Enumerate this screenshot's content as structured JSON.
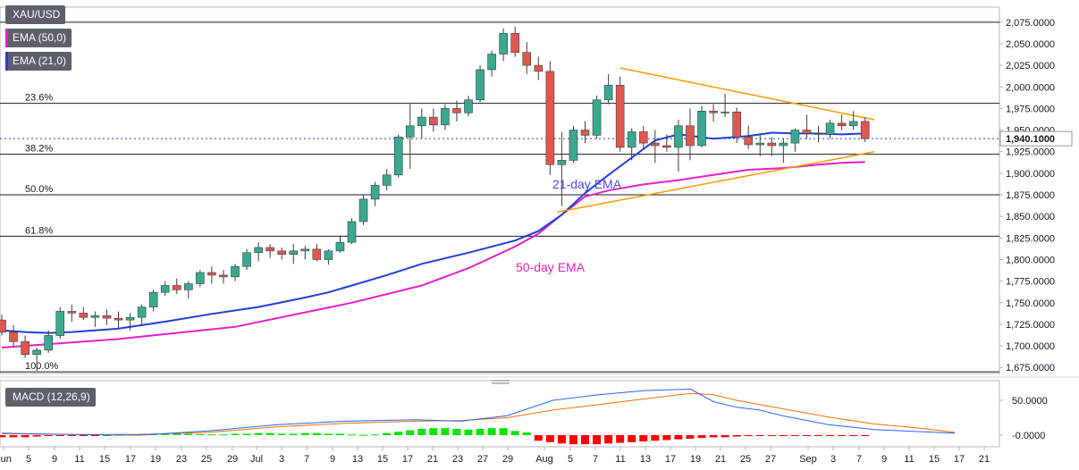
{
  "main_chart": {
    "symbol": "XAU/USD",
    "indicators": [
      "EMA (50,0)",
      "EMA (21,0)"
    ],
    "indicator_colors": [
      "#e51fc8",
      "#1f3fd6"
    ],
    "last_price": "1,940.1000",
    "price_ticks": [
      "2,075.0000",
      "2,050.0000",
      "2,025.0000",
      "2,000.0000",
      "1,975.0000",
      "1,950.0000",
      "1,925.0000",
      "1,900.0000",
      "1,875.0000",
      "1,850.0000",
      "1,825.0000",
      "1,800.0000",
      "1,775.0000",
      "1,750.0000",
      "1,725.0000",
      "1,700.0000",
      "1,675.0000"
    ],
    "date_ticks": [
      "Jun",
      "5",
      "9",
      "11",
      "15",
      "17",
      "19",
      "23",
      "25",
      "29",
      "Jul",
      "3",
      "7",
      "9",
      "13",
      "15",
      "17",
      "21",
      "23",
      "27",
      "29",
      "Aug",
      "5",
      "7",
      "11",
      "13",
      "17",
      "19",
      "21",
      "25",
      "27",
      "Sep",
      "3",
      "7",
      "9",
      "11",
      "15",
      "17",
      "21"
    ],
    "fib_labels": [
      "23.6%",
      "38.2%",
      "50.0%",
      "61.8%",
      "100.0%"
    ],
    "annotations": [
      "21-day EMA",
      "50-day EMA"
    ]
  },
  "macd_panel": {
    "label": "MACD (12,26,9)",
    "ticks": [
      "50.0000",
      "-0.0000"
    ]
  },
  "chart_data": {
    "type": "candlestick",
    "ylim": [
      1668,
      2080
    ],
    "levels": {
      "fib_0": 2075,
      "fib_23_6": 1981,
      "fib_38_2": 1922,
      "fib_50_0": 1875,
      "fib_61_8": 1827,
      "fib_100": 1670,
      "last": 1940.1
    },
    "candles": [
      {
        "o": 1730,
        "h": 1736,
        "l": 1712,
        "c": 1716
      },
      {
        "o": 1716,
        "h": 1724,
        "l": 1700,
        "c": 1705
      },
      {
        "o": 1705,
        "h": 1712,
        "l": 1686,
        "c": 1690
      },
      {
        "o": 1690,
        "h": 1698,
        "l": 1671,
        "c": 1695
      },
      {
        "o": 1695,
        "h": 1718,
        "l": 1692,
        "c": 1712
      },
      {
        "o": 1712,
        "h": 1745,
        "l": 1708,
        "c": 1740
      },
      {
        "o": 1740,
        "h": 1748,
        "l": 1728,
        "c": 1738
      },
      {
        "o": 1738,
        "h": 1745,
        "l": 1730,
        "c": 1733
      },
      {
        "o": 1733,
        "h": 1740,
        "l": 1722,
        "c": 1735
      },
      {
        "o": 1735,
        "h": 1742,
        "l": 1724,
        "c": 1732
      },
      {
        "o": 1732,
        "h": 1740,
        "l": 1720,
        "c": 1730
      },
      {
        "o": 1730,
        "h": 1738,
        "l": 1718,
        "c": 1733
      },
      {
        "o": 1733,
        "h": 1748,
        "l": 1725,
        "c": 1745
      },
      {
        "o": 1745,
        "h": 1765,
        "l": 1740,
        "c": 1762
      },
      {
        "o": 1762,
        "h": 1775,
        "l": 1758,
        "c": 1770
      },
      {
        "o": 1770,
        "h": 1778,
        "l": 1760,
        "c": 1765
      },
      {
        "o": 1765,
        "h": 1775,
        "l": 1755,
        "c": 1772
      },
      {
        "o": 1772,
        "h": 1788,
        "l": 1768,
        "c": 1785
      },
      {
        "o": 1785,
        "h": 1792,
        "l": 1772,
        "c": 1782
      },
      {
        "o": 1782,
        "h": 1788,
        "l": 1772,
        "c": 1780
      },
      {
        "o": 1780,
        "h": 1795,
        "l": 1775,
        "c": 1792
      },
      {
        "o": 1792,
        "h": 1812,
        "l": 1788,
        "c": 1808
      },
      {
        "o": 1808,
        "h": 1820,
        "l": 1798,
        "c": 1814
      },
      {
        "o": 1814,
        "h": 1818,
        "l": 1802,
        "c": 1810
      },
      {
        "o": 1810,
        "h": 1814,
        "l": 1800,
        "c": 1806
      },
      {
        "o": 1806,
        "h": 1818,
        "l": 1795,
        "c": 1810
      },
      {
        "o": 1810,
        "h": 1816,
        "l": 1800,
        "c": 1812
      },
      {
        "o": 1812,
        "h": 1818,
        "l": 1798,
        "c": 1800
      },
      {
        "o": 1800,
        "h": 1812,
        "l": 1794,
        "c": 1810
      },
      {
        "o": 1810,
        "h": 1828,
        "l": 1808,
        "c": 1820
      },
      {
        "o": 1820,
        "h": 1848,
        "l": 1818,
        "c": 1844
      },
      {
        "o": 1844,
        "h": 1875,
        "l": 1840,
        "c": 1870
      },
      {
        "o": 1870,
        "h": 1890,
        "l": 1862,
        "c": 1886
      },
      {
        "o": 1886,
        "h": 1905,
        "l": 1880,
        "c": 1898
      },
      {
        "o": 1898,
        "h": 1945,
        "l": 1895,
        "c": 1942
      },
      {
        "o": 1942,
        "h": 1980,
        "l": 1905,
        "c": 1955
      },
      {
        "o": 1955,
        "h": 1975,
        "l": 1940,
        "c": 1965
      },
      {
        "o": 1965,
        "h": 1975,
        "l": 1948,
        "c": 1956
      },
      {
        "o": 1956,
        "h": 1980,
        "l": 1950,
        "c": 1975
      },
      {
        "o": 1975,
        "h": 1984,
        "l": 1960,
        "c": 1970
      },
      {
        "o": 1970,
        "h": 1990,
        "l": 1966,
        "c": 1985
      },
      {
        "o": 1985,
        "h": 2025,
        "l": 1982,
        "c": 2020
      },
      {
        "o": 2020,
        "h": 2042,
        "l": 2012,
        "c": 2038
      },
      {
        "o": 2038,
        "h": 2068,
        "l": 2030,
        "c": 2062
      },
      {
        "o": 2062,
        "h": 2070,
        "l": 2035,
        "c": 2040
      },
      {
        "o": 2040,
        "h": 2052,
        "l": 2015,
        "c": 2025
      },
      {
        "o": 2025,
        "h": 2035,
        "l": 2008,
        "c": 2018
      },
      {
        "o": 2018,
        "h": 2030,
        "l": 1898,
        "c": 1910
      },
      {
        "o": 1910,
        "h": 1948,
        "l": 1862,
        "c": 1915
      },
      {
        "o": 1915,
        "h": 1955,
        "l": 1912,
        "c": 1950
      },
      {
        "o": 1950,
        "h": 1960,
        "l": 1935,
        "c": 1944
      },
      {
        "o": 1944,
        "h": 1990,
        "l": 1940,
        "c": 1985
      },
      {
        "o": 1985,
        "h": 2015,
        "l": 1980,
        "c": 2002
      },
      {
        "o": 2002,
        "h": 2012,
        "l": 1925,
        "c": 1930
      },
      {
        "o": 1930,
        "h": 1952,
        "l": 1915,
        "c": 1948
      },
      {
        "o": 1948,
        "h": 1955,
        "l": 1928,
        "c": 1935
      },
      {
        "o": 1935,
        "h": 1950,
        "l": 1912,
        "c": 1932
      },
      {
        "o": 1932,
        "h": 1945,
        "l": 1925,
        "c": 1930
      },
      {
        "o": 1930,
        "h": 1962,
        "l": 1902,
        "c": 1955
      },
      {
        "o": 1955,
        "h": 1975,
        "l": 1915,
        "c": 1932
      },
      {
        "o": 1932,
        "h": 1978,
        "l": 1930,
        "c": 1972
      },
      {
        "o": 1972,
        "h": 1980,
        "l": 1960,
        "c": 1970
      },
      {
        "o": 1970,
        "h": 1992,
        "l": 1965,
        "c": 1971
      },
      {
        "o": 1971,
        "h": 1976,
        "l": 1935,
        "c": 1942
      },
      {
        "o": 1942,
        "h": 1955,
        "l": 1928,
        "c": 1933
      },
      {
        "o": 1933,
        "h": 1945,
        "l": 1920,
        "c": 1935
      },
      {
        "o": 1935,
        "h": 1942,
        "l": 1920,
        "c": 1932
      },
      {
        "o": 1932,
        "h": 1940,
        "l": 1912,
        "c": 1935
      },
      {
        "o": 1935,
        "h": 1952,
        "l": 1925,
        "c": 1950
      },
      {
        "o": 1950,
        "h": 1968,
        "l": 1940,
        "c": 1946
      },
      {
        "o": 1946,
        "h": 1955,
        "l": 1936,
        "c": 1945
      },
      {
        "o": 1945,
        "h": 1962,
        "l": 1940,
        "c": 1958
      },
      {
        "o": 1958,
        "h": 1968,
        "l": 1950,
        "c": 1955
      },
      {
        "o": 1955,
        "h": 1972,
        "l": 1950,
        "c": 1960
      },
      {
        "o": 1960,
        "h": 1965,
        "l": 1936,
        "c": 1940.1
      }
    ],
    "ema21": [
      [
        0,
        1718
      ],
      [
        2,
        1716
      ],
      [
        4,
        1715
      ],
      [
        6,
        1716
      ],
      [
        10,
        1720
      ],
      [
        14,
        1728
      ],
      [
        18,
        1737
      ],
      [
        22,
        1745
      ],
      [
        26,
        1756
      ],
      [
        28,
        1762
      ],
      [
        30,
        1770
      ],
      [
        33,
        1782
      ],
      [
        36,
        1795
      ],
      [
        40,
        1808
      ],
      [
        44,
        1822
      ],
      [
        46,
        1833
      ],
      [
        48,
        1852
      ],
      [
        50,
        1877
      ],
      [
        52,
        1898
      ],
      [
        54,
        1918
      ],
      [
        56,
        1938
      ],
      [
        58,
        1945
      ],
      [
        61,
        1940
      ],
      [
        64,
        1943
      ],
      [
        66,
        1947
      ],
      [
        68,
        1946
      ],
      [
        70,
        1946
      ],
      [
        72,
        1945
      ],
      [
        74,
        1946
      ]
    ],
    "ema50": [
      [
        0,
        1698
      ],
      [
        10,
        1708
      ],
      [
        20,
        1722
      ],
      [
        30,
        1750
      ],
      [
        36,
        1770
      ],
      [
        40,
        1790
      ],
      [
        44,
        1815
      ],
      [
        46,
        1830
      ],
      [
        48,
        1852
      ],
      [
        50,
        1873
      ],
      [
        52,
        1880
      ],
      [
        55,
        1887
      ],
      [
        58,
        1892
      ],
      [
        61,
        1898
      ],
      [
        64,
        1904
      ],
      [
        67,
        1906
      ],
      [
        70,
        1910
      ],
      [
        72,
        1912
      ],
      [
        74,
        1913
      ]
    ],
    "trendlines": [
      {
        "x1": 53,
        "y1": 2022,
        "x2": 74.8,
        "y2": 1962
      },
      {
        "x1": 47.6,
        "y1": 1855,
        "x2": 74.8,
        "y2": 1925
      }
    ],
    "macd": {
      "ylim": [
        -15,
        68
      ],
      "macd_line": [
        [
          0,
          3
        ],
        [
          6,
          1
        ],
        [
          12,
          0
        ],
        [
          18,
          6
        ],
        [
          24,
          15
        ],
        [
          30,
          20
        ],
        [
          36,
          22
        ],
        [
          40,
          20
        ],
        [
          44,
          28
        ],
        [
          48,
          50
        ],
        [
          52,
          58
        ],
        [
          56,
          64
        ],
        [
          60,
          66
        ],
        [
          62,
          48
        ],
        [
          64,
          40
        ],
        [
          66,
          36
        ],
        [
          68,
          28
        ],
        [
          72,
          15
        ],
        [
          76,
          8
        ],
        [
          80,
          5
        ],
        [
          83,
          3
        ]
      ],
      "signal_line": [
        [
          0,
          2
        ],
        [
          6,
          1
        ],
        [
          12,
          1
        ],
        [
          18,
          4
        ],
        [
          24,
          12
        ],
        [
          30,
          17
        ],
        [
          36,
          20
        ],
        [
          40,
          21
        ],
        [
          44,
          25
        ],
        [
          48,
          36
        ],
        [
          52,
          44
        ],
        [
          56,
          52
        ],
        [
          60,
          60
        ],
        [
          62,
          58
        ],
        [
          64,
          50
        ],
        [
          66,
          44
        ],
        [
          68,
          38
        ],
        [
          72,
          26
        ],
        [
          76,
          16
        ],
        [
          80,
          10
        ],
        [
          83,
          4
        ]
      ],
      "histogram": [
        -3,
        -3,
        -3,
        -2,
        -1,
        -1,
        -1,
        -0.5,
        -0.5,
        0,
        0.5,
        1,
        2,
        2,
        2,
        2,
        2,
        1.5,
        1,
        1,
        2,
        2,
        3,
        3,
        2,
        2,
        3,
        3,
        2,
        2,
        1,
        0.5,
        1,
        3,
        5,
        7,
        9,
        10,
        10,
        9,
        8,
        9,
        10,
        10,
        6,
        4,
        -8,
        -10,
        -12,
        -13,
        -13,
        -13,
        -12,
        -11,
        -10,
        -9,
        -8,
        -7,
        -6,
        -5,
        -4,
        -3,
        -3,
        -2,
        -1,
        -1,
        -1,
        -0.5,
        -0.5,
        -0.5,
        -0.5,
        -0.5,
        -0.5,
        -0.5,
        -0.5
      ]
    }
  }
}
